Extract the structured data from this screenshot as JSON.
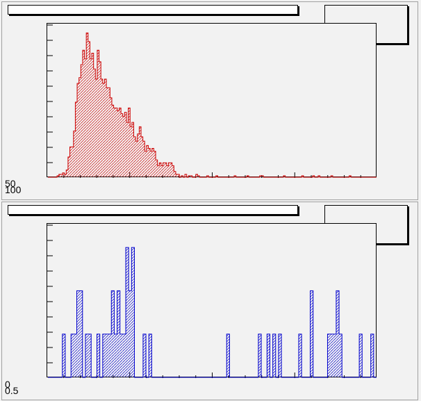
{
  "chart_data": [
    {
      "type": "histogram",
      "title": "",
      "stats": "",
      "xlabel": "",
      "ylabel": "",
      "y_tick_labels": [
        "50",
        "100"
      ],
      "style": {
        "line_color": "#cc0000",
        "fill_color": "#cc0000",
        "fill_pattern": "diagonal-hatch"
      },
      "x_range": [
        0,
        100
      ],
      "y_range": [
        0,
        105
      ],
      "values": [
        0,
        0,
        0,
        0,
        0,
        1,
        2,
        2,
        3,
        2,
        5,
        14,
        21,
        21,
        32,
        52,
        65,
        69,
        78,
        88,
        82,
        100,
        94,
        82,
        86,
        75,
        68,
        88,
        80,
        68,
        65,
        68,
        62,
        62,
        55,
        50,
        48,
        48,
        46,
        48,
        44,
        42,
        45,
        38,
        48,
        35,
        38,
        28,
        25,
        30,
        35,
        28,
        25,
        18,
        22,
        20,
        18,
        20,
        18,
        12,
        8,
        10,
        8,
        10,
        10,
        8,
        10,
        10,
        8,
        4,
        2,
        2,
        0,
        1,
        0,
        2,
        0,
        1,
        1,
        0,
        0,
        2,
        1,
        0,
        0,
        0,
        0,
        1,
        0,
        0,
        0,
        0,
        1,
        0,
        0,
        0,
        0,
        0,
        0,
        0,
        0,
        0,
        1,
        0,
        0,
        0,
        0,
        0,
        0,
        1,
        0,
        0,
        0,
        0,
        0,
        0,
        1,
        1,
        0,
        0,
        0,
        0,
        0,
        0,
        0,
        0,
        0,
        0,
        0,
        1,
        0,
        0,
        0,
        0,
        0,
        0,
        0,
        0,
        0,
        1,
        0,
        0,
        0,
        0,
        0,
        1,
        0,
        0,
        1,
        0,
        0,
        0,
        0,
        0,
        0,
        1,
        0,
        0,
        0,
        0,
        0,
        0,
        0,
        0,
        0,
        1,
        0,
        0,
        0,
        0,
        0,
        0,
        0,
        0,
        0,
        0,
        0,
        0,
        0,
        0
      ]
    },
    {
      "type": "histogram",
      "title": "",
      "stats": "",
      "xlabel": "",
      "ylabel": "",
      "y_tick_labels": [
        "0",
        "0.5"
      ],
      "style": {
        "line_color": "#0000cc",
        "fill_color": "#0000cc",
        "fill_pattern": "diagonal-hatch"
      },
      "y_range": [
        0,
        3.5
      ],
      "values": [
        0,
        0,
        0,
        0,
        0,
        1,
        0,
        0,
        1,
        1,
        2,
        2,
        0,
        1,
        1,
        0,
        0,
        1,
        0,
        1,
        1,
        1,
        2,
        1,
        2,
        1,
        1,
        3,
        2,
        3,
        0,
        0,
        0,
        1,
        0,
        1,
        0,
        0,
        0,
        0,
        0,
        0,
        0,
        0,
        0,
        0,
        0,
        0,
        0,
        0,
        0,
        0,
        0,
        0,
        0,
        0,
        0,
        0,
        0,
        0,
        0,
        0,
        1,
        0,
        0,
        0,
        0,
        0,
        0,
        0,
        0,
        0,
        0,
        1,
        0,
        0,
        1,
        0,
        1,
        0,
        1,
        0,
        0,
        0,
        0,
        0,
        0,
        1,
        0,
        0,
        0,
        2,
        0,
        0,
        0,
        0,
        0,
        1,
        1,
        1,
        2,
        1,
        0,
        0,
        0,
        0,
        0,
        0,
        1,
        0,
        0,
        0,
        1,
        0
      ]
    }
  ]
}
